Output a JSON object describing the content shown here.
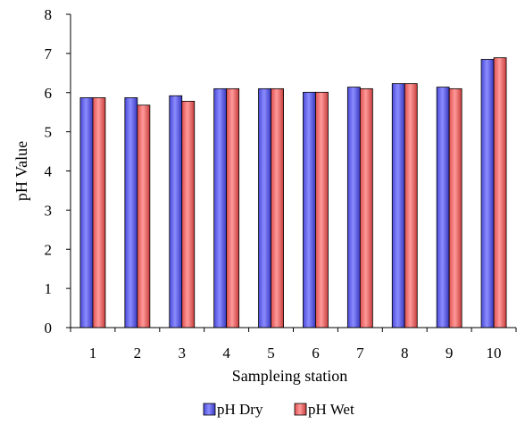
{
  "chart_data": {
    "type": "bar",
    "title": "",
    "xlabel": "Sampleing station",
    "ylabel": "pH Value",
    "categories": [
      "1",
      "2",
      "3",
      "4",
      "5",
      "6",
      "7",
      "8",
      "9",
      "10"
    ],
    "ylim": [
      0,
      8
    ],
    "yticks": [
      "0",
      "1",
      "2",
      "3",
      "4",
      "5",
      "6",
      "7",
      "8"
    ],
    "grid": false,
    "legend_position": "bottom",
    "series": [
      {
        "name": "pH Dry",
        "color": "#6a6aff",
        "values": [
          5.87,
          5.87,
          5.92,
          6.1,
          6.1,
          6.01,
          6.14,
          6.23,
          6.14,
          6.85
        ]
      },
      {
        "name": "pH Wet",
        "color": "#ff6a6a",
        "values": [
          5.87,
          5.68,
          5.78,
          6.1,
          6.1,
          6.01,
          6.1,
          6.23,
          6.1,
          6.89
        ]
      }
    ]
  }
}
